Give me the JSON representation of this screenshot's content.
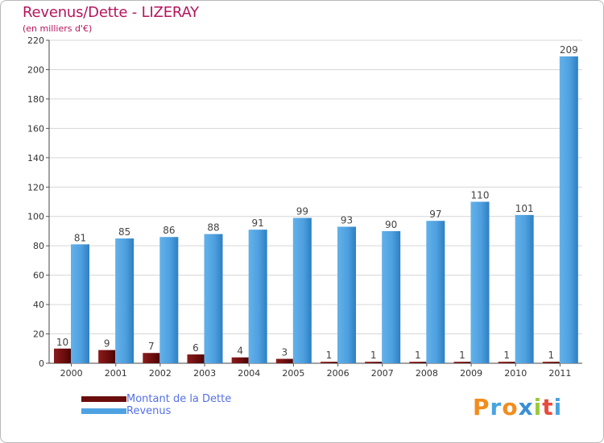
{
  "chart_data": {
    "type": "bar",
    "title": "Revenus/Dette - LIZERAY",
    "subtitle": "(en milliers d'€)",
    "categories": [
      "2000",
      "2001",
      "2002",
      "2003",
      "2004",
      "2005",
      "2006",
      "2007",
      "2008",
      "2009",
      "2010",
      "2011"
    ],
    "series": [
      {
        "name": "Montant de la Dette",
        "color": "#6b0d0d",
        "values": [
          10,
          9,
          7,
          6,
          4,
          3,
          1,
          1,
          1,
          1,
          1,
          1
        ]
      },
      {
        "name": "Revenus",
        "color": "#4fa2e2",
        "values": [
          81,
          85,
          86,
          88,
          91,
          99,
          93,
          90,
          97,
          110,
          101,
          209
        ]
      }
    ],
    "ylim": [
      0,
      220
    ],
    "yticks": [
      0,
      20,
      40,
      60,
      80,
      100,
      120,
      140,
      160,
      180,
      200,
      220
    ],
    "xlabel": "",
    "ylabel": "",
    "grid": true,
    "legend": "bottom-left"
  },
  "logo": {
    "letters": [
      "P",
      "r",
      "o",
      "x",
      "i",
      "t",
      "i"
    ],
    "colors": [
      "#f18d1e",
      "#4aa3df",
      "#f18d1e",
      "#3a8fd3",
      "#9ac93b",
      "#e84b3c",
      "#4aa3df"
    ]
  }
}
